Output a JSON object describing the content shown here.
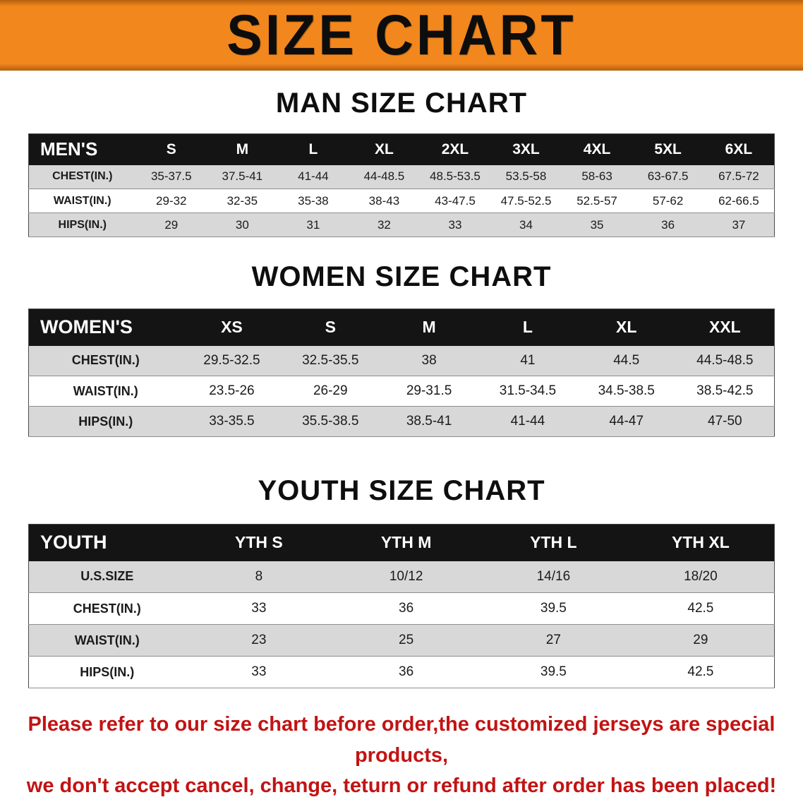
{
  "banner": {
    "title": "SIZE CHART",
    "bg_color": "#F2871D"
  },
  "chart_data": [
    {
      "type": "table",
      "title": "MAN SIZE CHART",
      "header": [
        "MEN'S",
        "S",
        "M",
        "L",
        "XL",
        "2XL",
        "3XL",
        "4XL",
        "5XL",
        "6XL"
      ],
      "rows": [
        [
          "CHEST(IN.)",
          "35-37.5",
          "37.5-41",
          "41-44",
          "44-48.5",
          "48.5-53.5",
          "53.5-58",
          "58-63",
          "63-67.5",
          "67.5-72"
        ],
        [
          "WAIST(IN.)",
          "29-32",
          "32-35",
          "35-38",
          "38-43",
          "43-47.5",
          "47.5-52.5",
          "52.5-57",
          "57-62",
          "62-66.5"
        ],
        [
          "HIPS(IN.)",
          "29",
          "30",
          "31",
          "32",
          "33",
          "34",
          "35",
          "36",
          "37"
        ]
      ]
    },
    {
      "type": "table",
      "title": "WOMEN SIZE CHART",
      "header": [
        "WOMEN'S",
        "XS",
        "S",
        "M",
        "L",
        "XL",
        "XXL"
      ],
      "rows": [
        [
          "CHEST(IN.)",
          "29.5-32.5",
          "32.5-35.5",
          "38",
          "41",
          "44.5",
          "44.5-48.5"
        ],
        [
          "WAIST(IN.)",
          "23.5-26",
          "26-29",
          "29-31.5",
          "31.5-34.5",
          "34.5-38.5",
          "38.5-42.5"
        ],
        [
          "HIPS(IN.)",
          "33-35.5",
          "35.5-38.5",
          "38.5-41",
          "41-44",
          "44-47",
          "47-50"
        ]
      ]
    },
    {
      "type": "table",
      "title": "YOUTH SIZE CHART",
      "header": [
        "YOUTH",
        "YTH S",
        "YTH M",
        "YTH L",
        "YTH XL"
      ],
      "rows": [
        [
          "U.S.SIZE",
          "8",
          "10/12",
          "14/16",
          "18/20"
        ],
        [
          "CHEST(IN.)",
          "33",
          "36",
          "39.5",
          "42.5"
        ],
        [
          "WAIST(IN.)",
          "23",
          "25",
          "27",
          "29"
        ],
        [
          "HIPS(IN.)",
          "33",
          "36",
          "39.5",
          "42.5"
        ]
      ]
    }
  ],
  "footnote": {
    "color": "#C21313",
    "lines": [
      "Please refer to our size chart before order,the customized jerseys are special products,",
      "we don't accept cancel, change, teturn or refund after order has been placed!"
    ]
  }
}
